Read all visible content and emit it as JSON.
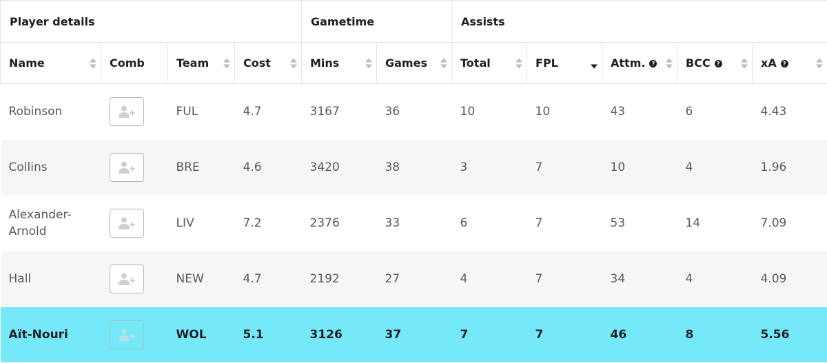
{
  "groups": [
    "Player details",
    "Gametime",
    "Assists"
  ],
  "columns": [
    "Name",
    "Comb",
    "Team",
    "Cost",
    "Mins",
    "Games",
    "Total",
    "FPL",
    "Attm.",
    "BCC",
    "xA"
  ],
  "help_symbol": "?",
  "rows": [
    {
      "name": "Robinson",
      "team": "FUL",
      "cost": "4.7",
      "mins": "3167",
      "games": "36",
      "total": "10",
      "fpl": "10",
      "attm": "43",
      "bcc": "6",
      "xa": "4.43"
    },
    {
      "name": "Collins",
      "team": "BRE",
      "cost": "4.6",
      "mins": "3420",
      "games": "38",
      "total": "3",
      "fpl": "7",
      "attm": "10",
      "bcc": "4",
      "xa": "1.96"
    },
    {
      "name": "Alexander-Arnold",
      "team": "LIV",
      "cost": "7.2",
      "mins": "2376",
      "games": "33",
      "total": "6",
      "fpl": "7",
      "attm": "53",
      "bcc": "14",
      "xa": "7.09"
    },
    {
      "name": "Hall",
      "team": "NEW",
      "cost": "4.7",
      "mins": "2192",
      "games": "27",
      "total": "4",
      "fpl": "7",
      "attm": "34",
      "bcc": "4",
      "xa": "4.09"
    },
    {
      "name": "Aït-Nouri",
      "team": "WOL",
      "cost": "5.1",
      "mins": "3126",
      "games": "37",
      "total": "7",
      "fpl": "7",
      "attm": "46",
      "bcc": "8",
      "xa": "5.56"
    }
  ],
  "colors": {
    "highlight_row": "#75e9f7",
    "text_dark": "#1e1e28",
    "text_muted": "#5a5a5a"
  },
  "icons": {
    "comb": "add-user-icon",
    "sort": "sort-arrows-icon",
    "help": "help-icon"
  }
}
